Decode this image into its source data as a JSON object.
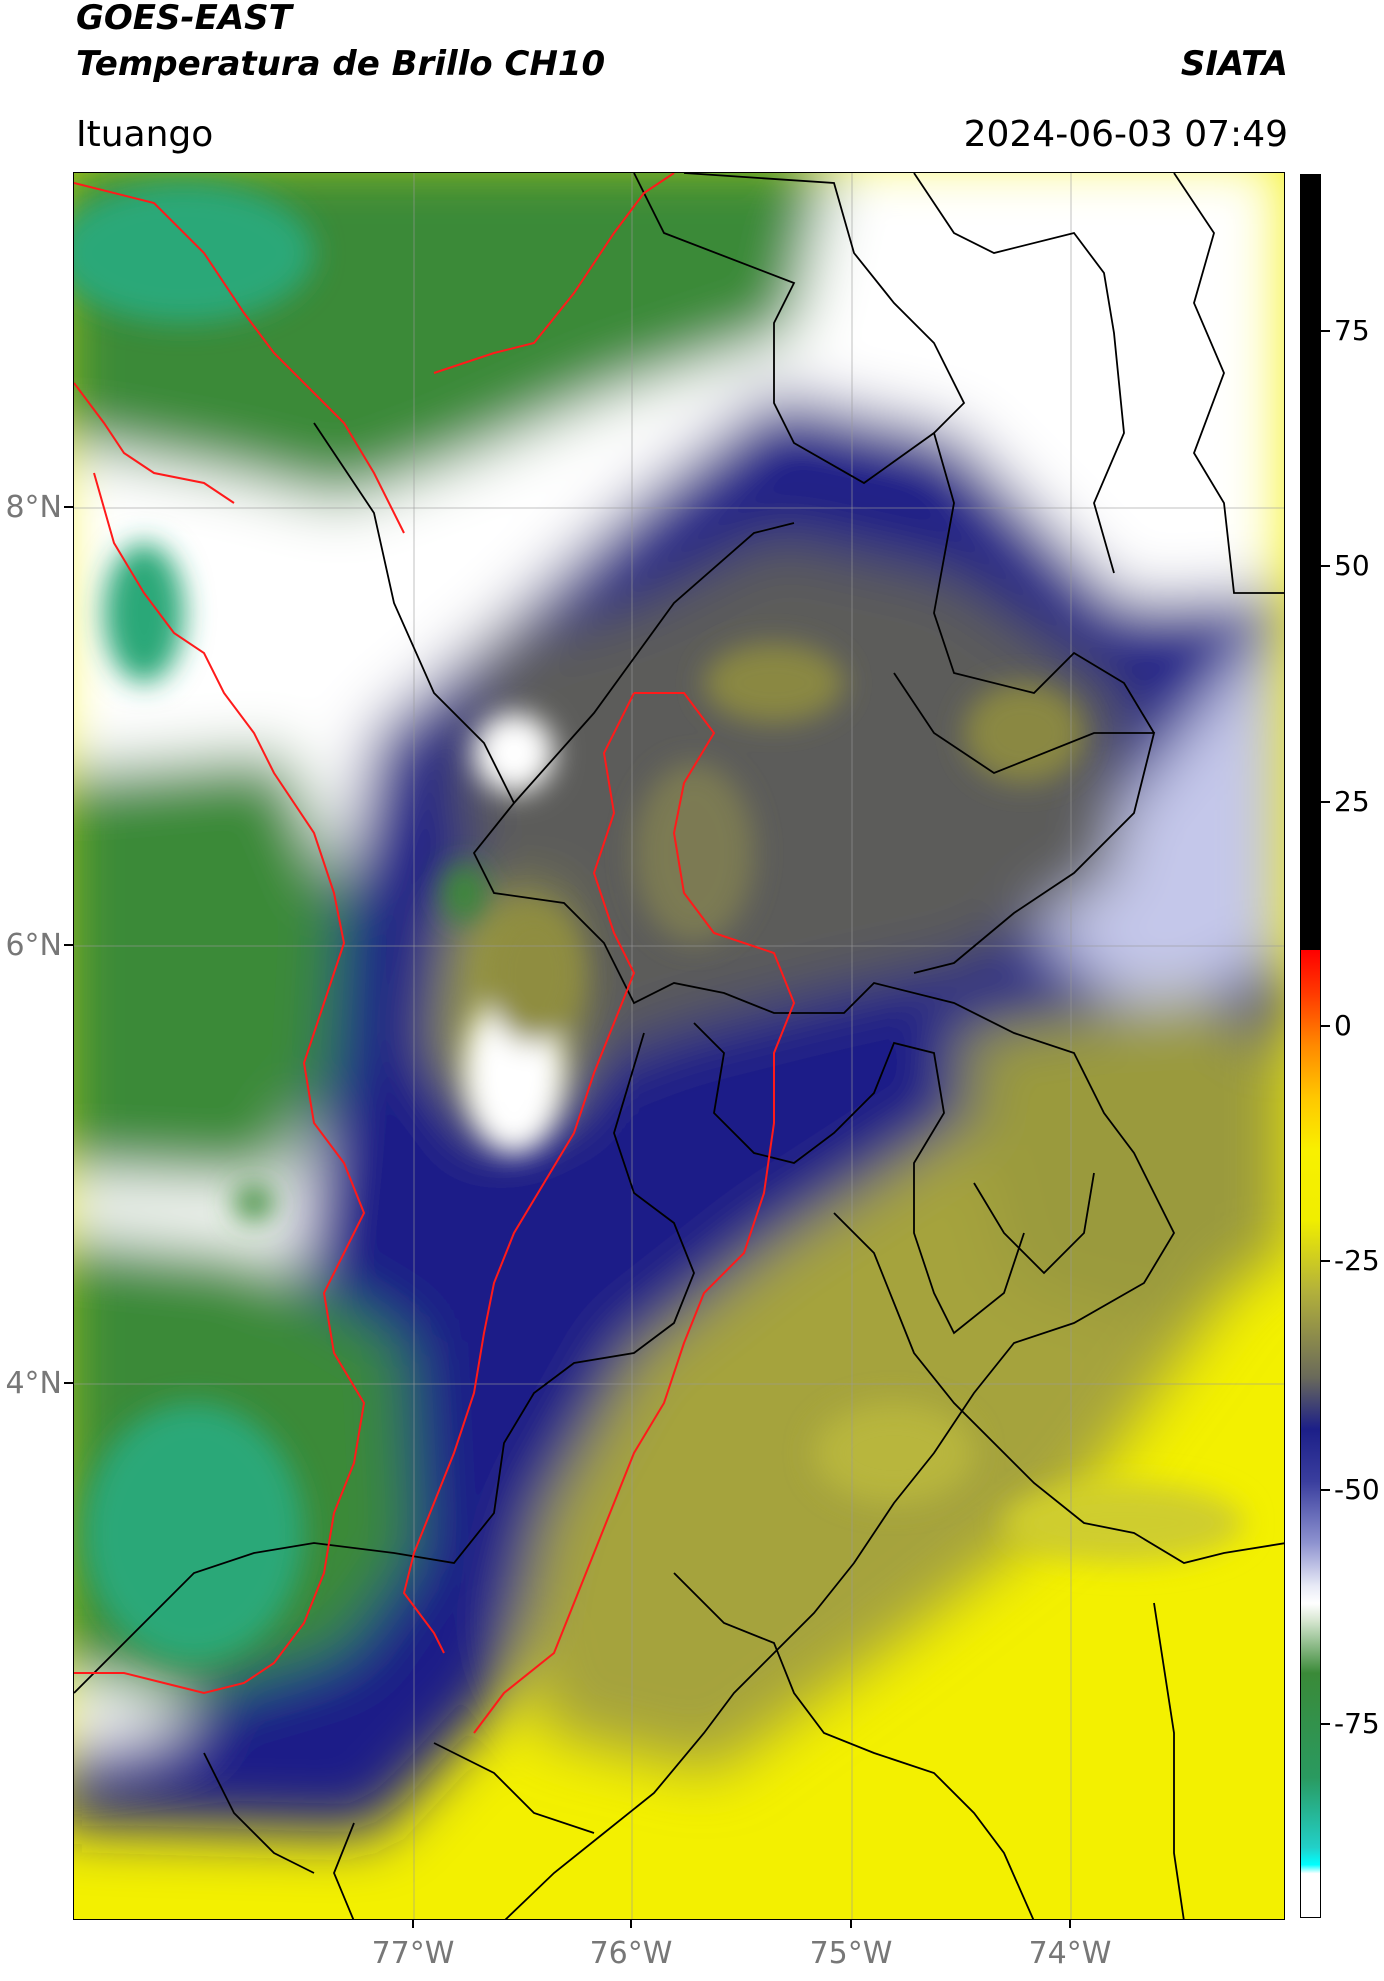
{
  "header": {
    "title": "GOES-EAST",
    "subtitle": "Temperatura de Brillo CH10",
    "organization": "SIATA",
    "location": "Ituango",
    "timestamp": "2024-06-03 07:49"
  },
  "map": {
    "lon_range": [
      -78.55,
      -73.0
    ],
    "lat_range": [
      2.0,
      9.55
    ],
    "lat_ticks": [
      {
        "value": 8,
        "label": "8°N"
      },
      {
        "value": 6,
        "label": "6°N"
      },
      {
        "value": 4,
        "label": "4°N"
      }
    ],
    "lon_ticks": [
      {
        "value": -77,
        "label": "77°W"
      },
      {
        "value": -76,
        "label": "76°W"
      },
      {
        "value": -75,
        "label": "75°W"
      },
      {
        "value": -74,
        "label": "74°W"
      }
    ],
    "gridlines": true,
    "colors": {
      "warm_yellow": "#f3f000",
      "olive": "#8f8f3a",
      "gray_olive": "#5e5e58",
      "dark_blue": "#1c1f88",
      "light_blue": "#8d92cf",
      "white": "#ffffff",
      "green": "#3a8a38",
      "teal_green": "#2aa878",
      "border_black": "#000000",
      "border_red": "#ff0000"
    }
  },
  "colorbar": {
    "range": [
      -95,
      90
    ],
    "ticks": [
      {
        "value": 75,
        "label": "75"
      },
      {
        "value": 50,
        "label": "50"
      },
      {
        "value": 25,
        "label": "25"
      },
      {
        "value": 0,
        "label": "0"
      },
      {
        "value": -25,
        "label": "-25"
      },
      {
        "value": -50,
        "label": "-50"
      },
      {
        "value": -75,
        "label": "-75"
      }
    ]
  }
}
